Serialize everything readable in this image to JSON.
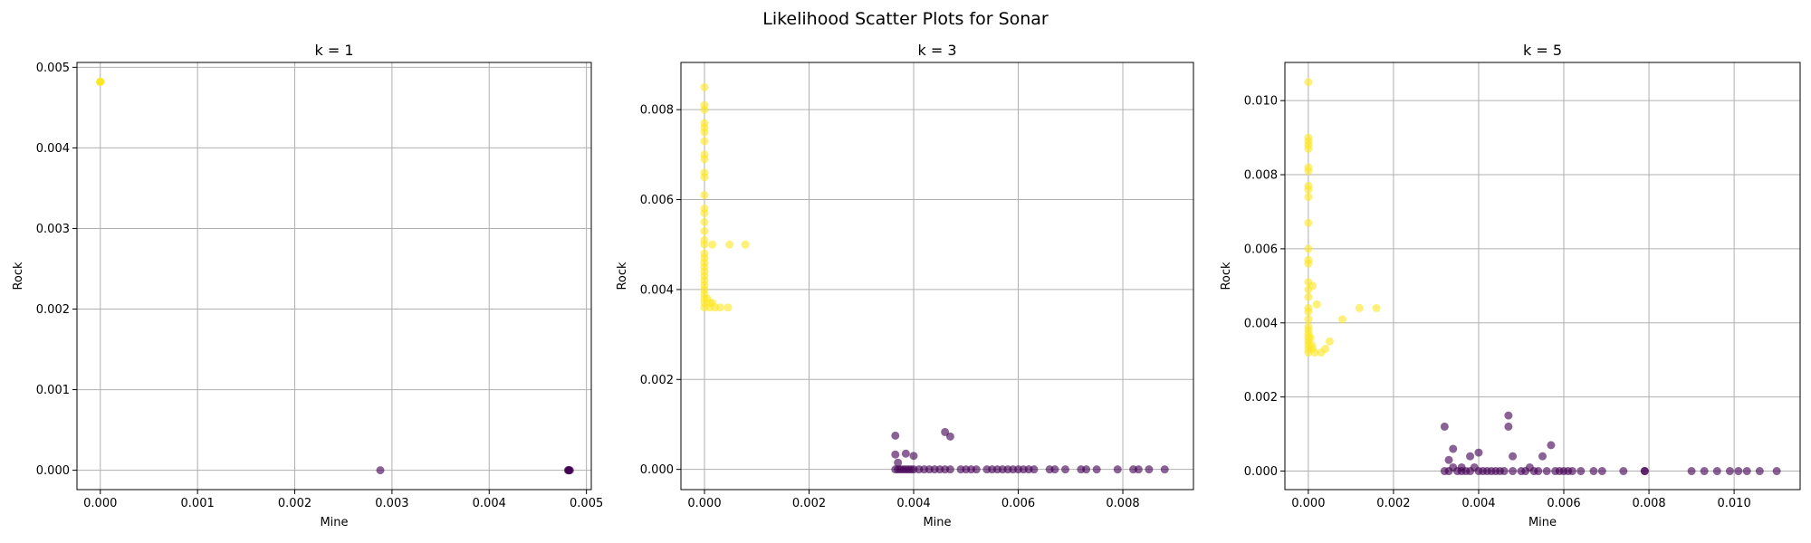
{
  "figure": {
    "title": "Likelihood Scatter Plots for Sonar"
  },
  "colors": {
    "rock_class": "#fde725",
    "mine_class": "#440154",
    "grid": "#b0b0b0",
    "axes": "#000000"
  },
  "chart_data": [
    {
      "type": "scatter",
      "title": "k = 1",
      "xlabel": "Mine",
      "ylabel": "Rock",
      "xlim": [
        -0.00024,
        0.00505
      ],
      "ylim": [
        -0.00024,
        0.00506
      ],
      "xticks": [
        0.0,
        0.001,
        0.002,
        0.003,
        0.004,
        0.005
      ],
      "xtick_labels": [
        "0.000",
        "0.001",
        "0.002",
        "0.003",
        "0.004",
        "0.005"
      ],
      "yticks": [
        0.0,
        0.001,
        0.002,
        0.003,
        0.004,
        0.005
      ],
      "ytick_labels": [
        "0.000",
        "0.001",
        "0.002",
        "0.003",
        "0.004",
        "0.005"
      ],
      "grid": true,
      "series": [
        {
          "class": "rock",
          "points": [
            [
              0.0,
              0.00482
            ],
            [
              0.0,
              0.00482
            ],
            [
              0.0,
              0.00482
            ],
            [
              0.0,
              0.00482
            ],
            [
              0.0,
              0.00482
            ]
          ]
        },
        {
          "class": "mine",
          "points": [
            [
              0.00288,
              0.0
            ],
            [
              0.00482,
              0.0
            ],
            [
              0.00482,
              0.0
            ],
            [
              0.00481,
              0.0
            ],
            [
              0.00483,
              0.0
            ],
            [
              0.00482,
              0.0
            ]
          ]
        }
      ]
    },
    {
      "type": "scatter",
      "title": "k = 3",
      "xlabel": "Mine",
      "ylabel": "Rock",
      "xlim": [
        -0.00045,
        0.00935
      ],
      "ylim": [
        -0.00045,
        0.00905
      ],
      "xticks": [
        0.0,
        0.002,
        0.004,
        0.006,
        0.008
      ],
      "xtick_labels": [
        "0.000",
        "0.002",
        "0.004",
        "0.006",
        "0.008"
      ],
      "yticks": [
        0.0,
        0.002,
        0.004,
        0.006,
        0.008
      ],
      "ytick_labels": [
        "0.000",
        "0.002",
        "0.004",
        "0.006",
        "0.008"
      ],
      "grid": true,
      "series": [
        {
          "class": "rock",
          "points": [
            [
              0.0,
              0.0085
            ],
            [
              0.0,
              0.0081
            ],
            [
              0.0,
              0.008
            ],
            [
              0.0,
              0.0077
            ],
            [
              0.0,
              0.0076
            ],
            [
              0.0,
              0.0075
            ],
            [
              0.0,
              0.0073
            ],
            [
              0.0,
              0.007
            ],
            [
              0.0,
              0.0069
            ],
            [
              0.0,
              0.0066
            ],
            [
              0.0,
              0.0065
            ],
            [
              0.0,
              0.0061
            ],
            [
              0.0,
              0.0058
            ],
            [
              0.0,
              0.0057
            ],
            [
              0.0,
              0.0055
            ],
            [
              0.0,
              0.0053
            ],
            [
              0.0,
              0.0051
            ],
            [
              0.0,
              0.005
            ],
            [
              0.0,
              0.0048
            ],
            [
              0.0,
              0.0047
            ],
            [
              0.0,
              0.0046
            ],
            [
              0.0,
              0.0045
            ],
            [
              0.0,
              0.0044
            ],
            [
              0.0,
              0.0043
            ],
            [
              0.0,
              0.0042
            ],
            [
              0.0,
              0.0041
            ],
            [
              0.0,
              0.004
            ],
            [
              0.0,
              0.0039
            ],
            [
              0.0,
              0.0038
            ],
            [
              0.0,
              0.0037
            ],
            [
              0.0,
              0.0036
            ],
            [
              5e-05,
              0.0038
            ],
            [
              0.0001,
              0.0037
            ],
            [
              0.0001,
              0.0036
            ],
            [
              0.00015,
              0.005
            ],
            [
              0.00015,
              0.0037
            ],
            [
              0.0002,
              0.0036
            ],
            [
              0.0003,
              0.0036
            ],
            [
              0.00045,
              0.0036
            ],
            [
              0.00048,
              0.005
            ],
            [
              0.00078,
              0.005
            ]
          ]
        },
        {
          "class": "mine",
          "points": [
            [
              0.00365,
              0.00075
            ],
            [
              0.00365,
              0.00033
            ],
            [
              0.00365,
              0.0
            ],
            [
              0.0037,
              0.0
            ],
            [
              0.0037,
              0.00015
            ],
            [
              0.00375,
              0.0
            ],
            [
              0.0038,
              0.0
            ],
            [
              0.00385,
              0.00035
            ],
            [
              0.00385,
              0.0
            ],
            [
              0.0039,
              0.0
            ],
            [
              0.00395,
              0.0
            ],
            [
              0.004,
              0.0003
            ],
            [
              0.004,
              0.0
            ],
            [
              0.0041,
              0.0
            ],
            [
              0.0042,
              0.0
            ],
            [
              0.0043,
              0.0
            ],
            [
              0.0044,
              0.0
            ],
            [
              0.0045,
              0.0
            ],
            [
              0.0046,
              0.00083
            ],
            [
              0.0046,
              0.0
            ],
            [
              0.0047,
              0.00073
            ],
            [
              0.0047,
              0.0
            ],
            [
              0.0049,
              0.0
            ],
            [
              0.005,
              0.0
            ],
            [
              0.0051,
              0.0
            ],
            [
              0.0052,
              0.0
            ],
            [
              0.0054,
              0.0
            ],
            [
              0.0055,
              0.0
            ],
            [
              0.0056,
              0.0
            ],
            [
              0.0057,
              0.0
            ],
            [
              0.0058,
              0.0
            ],
            [
              0.0059,
              0.0
            ],
            [
              0.006,
              0.0
            ],
            [
              0.0061,
              0.0
            ],
            [
              0.0062,
              0.0
            ],
            [
              0.0063,
              0.0
            ],
            [
              0.0066,
              0.0
            ],
            [
              0.0067,
              0.0
            ],
            [
              0.0069,
              0.0
            ],
            [
              0.0072,
              0.0
            ],
            [
              0.0073,
              0.0
            ],
            [
              0.0075,
              0.0
            ],
            [
              0.0079,
              0.0
            ],
            [
              0.0082,
              0.0
            ],
            [
              0.0083,
              0.0
            ],
            [
              0.0085,
              0.0
            ],
            [
              0.0088,
              0.0
            ]
          ]
        }
      ]
    },
    {
      "type": "scatter",
      "title": "k = 5",
      "xlabel": "Mine",
      "ylabel": "Rock",
      "xlim": [
        -0.00055,
        0.01155
      ],
      "ylim": [
        -0.0005,
        0.01103
      ],
      "xticks": [
        0.0,
        0.002,
        0.004,
        0.006,
        0.008,
        0.01
      ],
      "xtick_labels": [
        "0.000",
        "0.002",
        "0.004",
        "0.006",
        "0.008",
        "0.010"
      ],
      "yticks": [
        0.0,
        0.002,
        0.004,
        0.006,
        0.008,
        0.01
      ],
      "ytick_labels": [
        "0.000",
        "0.002",
        "0.004",
        "0.006",
        "0.008",
        "0.010"
      ],
      "grid": true,
      "series": [
        {
          "class": "rock",
          "points": [
            [
              0.0,
              0.0105
            ],
            [
              0.0,
              0.009
            ],
            [
              0.0,
              0.0089
            ],
            [
              0.0,
              0.0088
            ],
            [
              0.0,
              0.0087
            ],
            [
              0.0,
              0.0082
            ],
            [
              0.0,
              0.0081
            ],
            [
              0.0,
              0.0077
            ],
            [
              0.0,
              0.0076
            ],
            [
              0.0,
              0.0074
            ],
            [
              0.0,
              0.0067
            ],
            [
              0.0,
              0.006
            ],
            [
              0.0,
              0.0057
            ],
            [
              0.0,
              0.0056
            ],
            [
              0.0,
              0.0051
            ],
            [
              0.0,
              0.0049
            ],
            [
              0.0,
              0.0047
            ],
            [
              0.0,
              0.0044
            ],
            [
              0.0,
              0.0043
            ],
            [
              0.0,
              0.0041
            ],
            [
              0.0,
              0.0039
            ],
            [
              0.0,
              0.0038
            ],
            [
              0.0,
              0.0037
            ],
            [
              0.0,
              0.0036
            ],
            [
              0.0,
              0.0035
            ],
            [
              0.0,
              0.0034
            ],
            [
              0.0,
              0.0033
            ],
            [
              0.0,
              0.0032
            ],
            [
              5e-05,
              0.0036
            ],
            [
              8e-05,
              0.0034
            ],
            [
              0.0001,
              0.005
            ],
            [
              0.0001,
              0.0033
            ],
            [
              0.00015,
              0.0032
            ],
            [
              0.0002,
              0.0045
            ],
            [
              0.0003,
              0.0032
            ],
            [
              0.0004,
              0.0033
            ],
            [
              0.0005,
              0.0035
            ],
            [
              0.0008,
              0.0041
            ],
            [
              0.0012,
              0.0044
            ],
            [
              0.0016,
              0.0044
            ]
          ]
        },
        {
          "class": "mine",
          "points": [
            [
              0.0032,
              0.0012
            ],
            [
              0.0032,
              0.0
            ],
            [
              0.0033,
              0.0003
            ],
            [
              0.0033,
              0.0
            ],
            [
              0.0034,
              0.0006
            ],
            [
              0.0034,
              0.0001
            ],
            [
              0.0035,
              0.0
            ],
            [
              0.0036,
              0.0001
            ],
            [
              0.0036,
              0.0
            ],
            [
              0.0037,
              0.0
            ],
            [
              0.0038,
              0.0004
            ],
            [
              0.0038,
              0.0
            ],
            [
              0.0039,
              0.0001
            ],
            [
              0.004,
              0.0005
            ],
            [
              0.004,
              0.0
            ],
            [
              0.0041,
              0.0
            ],
            [
              0.0042,
              0.0
            ],
            [
              0.0043,
              0.0
            ],
            [
              0.0044,
              0.0
            ],
            [
              0.0045,
              0.0
            ],
            [
              0.0046,
              0.0
            ],
            [
              0.0047,
              0.0015
            ],
            [
              0.0047,
              0.0012
            ],
            [
              0.0048,
              0.0004
            ],
            [
              0.0048,
              0.0
            ],
            [
              0.005,
              0.0
            ],
            [
              0.0051,
              0.0
            ],
            [
              0.0052,
              0.0001
            ],
            [
              0.0053,
              0.0
            ],
            [
              0.0054,
              0.0
            ],
            [
              0.0055,
              0.0004
            ],
            [
              0.0056,
              0.0
            ],
            [
              0.0057,
              0.0007
            ],
            [
              0.0058,
              0.0
            ],
            [
              0.0059,
              0.0
            ],
            [
              0.006,
              0.0
            ],
            [
              0.0061,
              0.0
            ],
            [
              0.0062,
              0.0
            ],
            [
              0.0064,
              0.0
            ],
            [
              0.0067,
              0.0
            ],
            [
              0.0069,
              0.0
            ],
            [
              0.0074,
              0.0
            ],
            [
              0.0079,
              0.0
            ],
            [
              0.0079,
              0.0
            ],
            [
              0.009,
              0.0
            ],
            [
              0.0093,
              0.0
            ],
            [
              0.0096,
              0.0
            ],
            [
              0.0099,
              0.0
            ],
            [
              0.0101,
              0.0
            ],
            [
              0.0103,
              0.0
            ],
            [
              0.0106,
              0.0
            ],
            [
              0.011,
              0.0
            ]
          ]
        }
      ]
    }
  ]
}
